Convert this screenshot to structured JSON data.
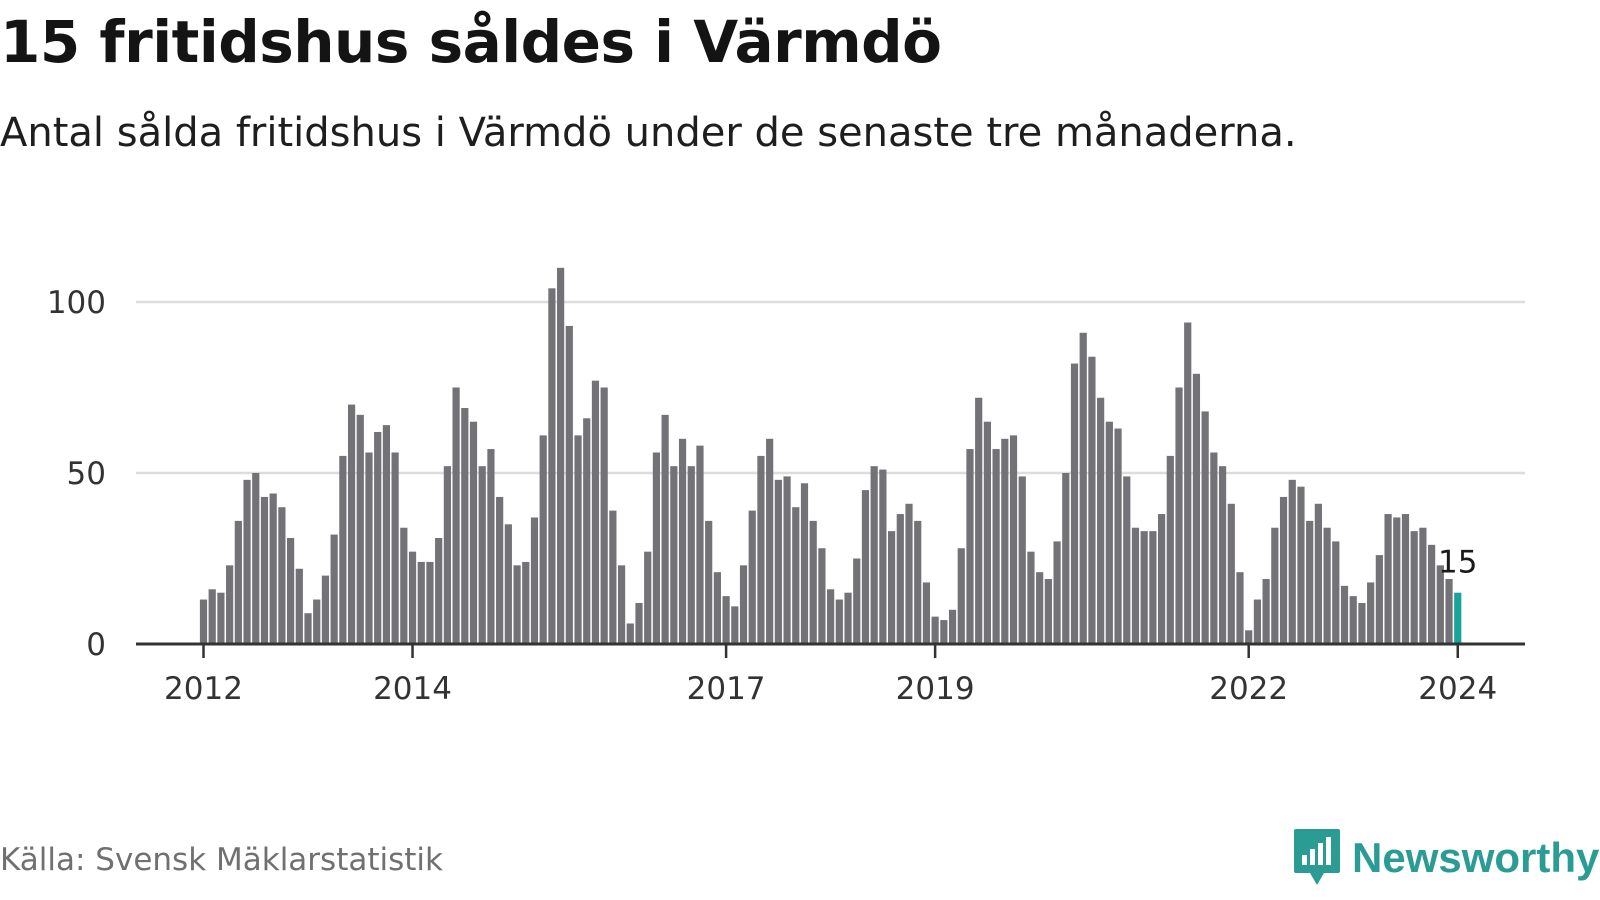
{
  "header": {
    "title": "15 fritidshus såldes i Värmdö",
    "subtitle": "Antal sålda fritidshus i Värmdö under de senaste tre månaderna."
  },
  "footer": {
    "source": "Källa: Svensk Mäklarstatistik",
    "brand": "Newsworthy",
    "brand_icon": "newsworthy-logo-icon"
  },
  "colors": {
    "bar": "#737377",
    "highlight": "#1aa39a",
    "grid": "#dddddd",
    "axis": "#333333",
    "brand": "#2b9c94"
  },
  "chart_data": {
    "type": "bar",
    "title": "15 fritidshus såldes i Värmdö",
    "subtitle": "Antal sålda fritidshus i Värmdö under de senaste tre månaderna.",
    "xlabel": "",
    "ylabel": "",
    "ylim": [
      0,
      110
    ],
    "yticks": [
      0,
      50,
      100
    ],
    "grid": true,
    "start_year": 2012,
    "start_month": 1,
    "xticks": [
      {
        "label": "2012",
        "index": 0
      },
      {
        "label": "2014",
        "index": 24
      },
      {
        "label": "2017",
        "index": 60
      },
      {
        "label": "2019",
        "index": 84
      },
      {
        "label": "2022",
        "index": 120
      },
      {
        "label": "2024",
        "index": 144
      }
    ],
    "values": [
      13,
      16,
      15,
      23,
      36,
      48,
      50,
      43,
      44,
      40,
      31,
      22,
      9,
      13,
      20,
      32,
      55,
      70,
      67,
      56,
      62,
      64,
      56,
      34,
      27,
      24,
      24,
      31,
      52,
      75,
      69,
      65,
      52,
      57,
      43,
      35,
      23,
      24,
      37,
      61,
      104,
      110,
      93,
      61,
      66,
      77,
      75,
      39,
      23,
      6,
      12,
      27,
      56,
      67,
      52,
      60,
      52,
      58,
      36,
      21,
      14,
      11,
      23,
      39,
      55,
      60,
      48,
      49,
      40,
      47,
      36,
      28,
      16,
      13,
      15,
      25,
      45,
      52,
      51,
      33,
      38,
      41,
      36,
      18,
      8,
      7,
      10,
      28,
      57,
      72,
      65,
      57,
      60,
      61,
      49,
      27,
      21,
      19,
      30,
      50,
      82,
      91,
      84,
      72,
      65,
      63,
      49,
      34,
      33,
      33,
      38,
      55,
      75,
      94,
      79,
      68,
      56,
      52,
      41,
      21,
      4,
      13,
      19,
      34,
      43,
      48,
      46,
      36,
      41,
      34,
      30,
      17,
      14,
      12,
      18,
      26,
      38,
      37,
      38,
      33,
      34,
      29,
      23,
      19,
      15
    ],
    "highlight_index": 144,
    "highlight_label": "15"
  }
}
